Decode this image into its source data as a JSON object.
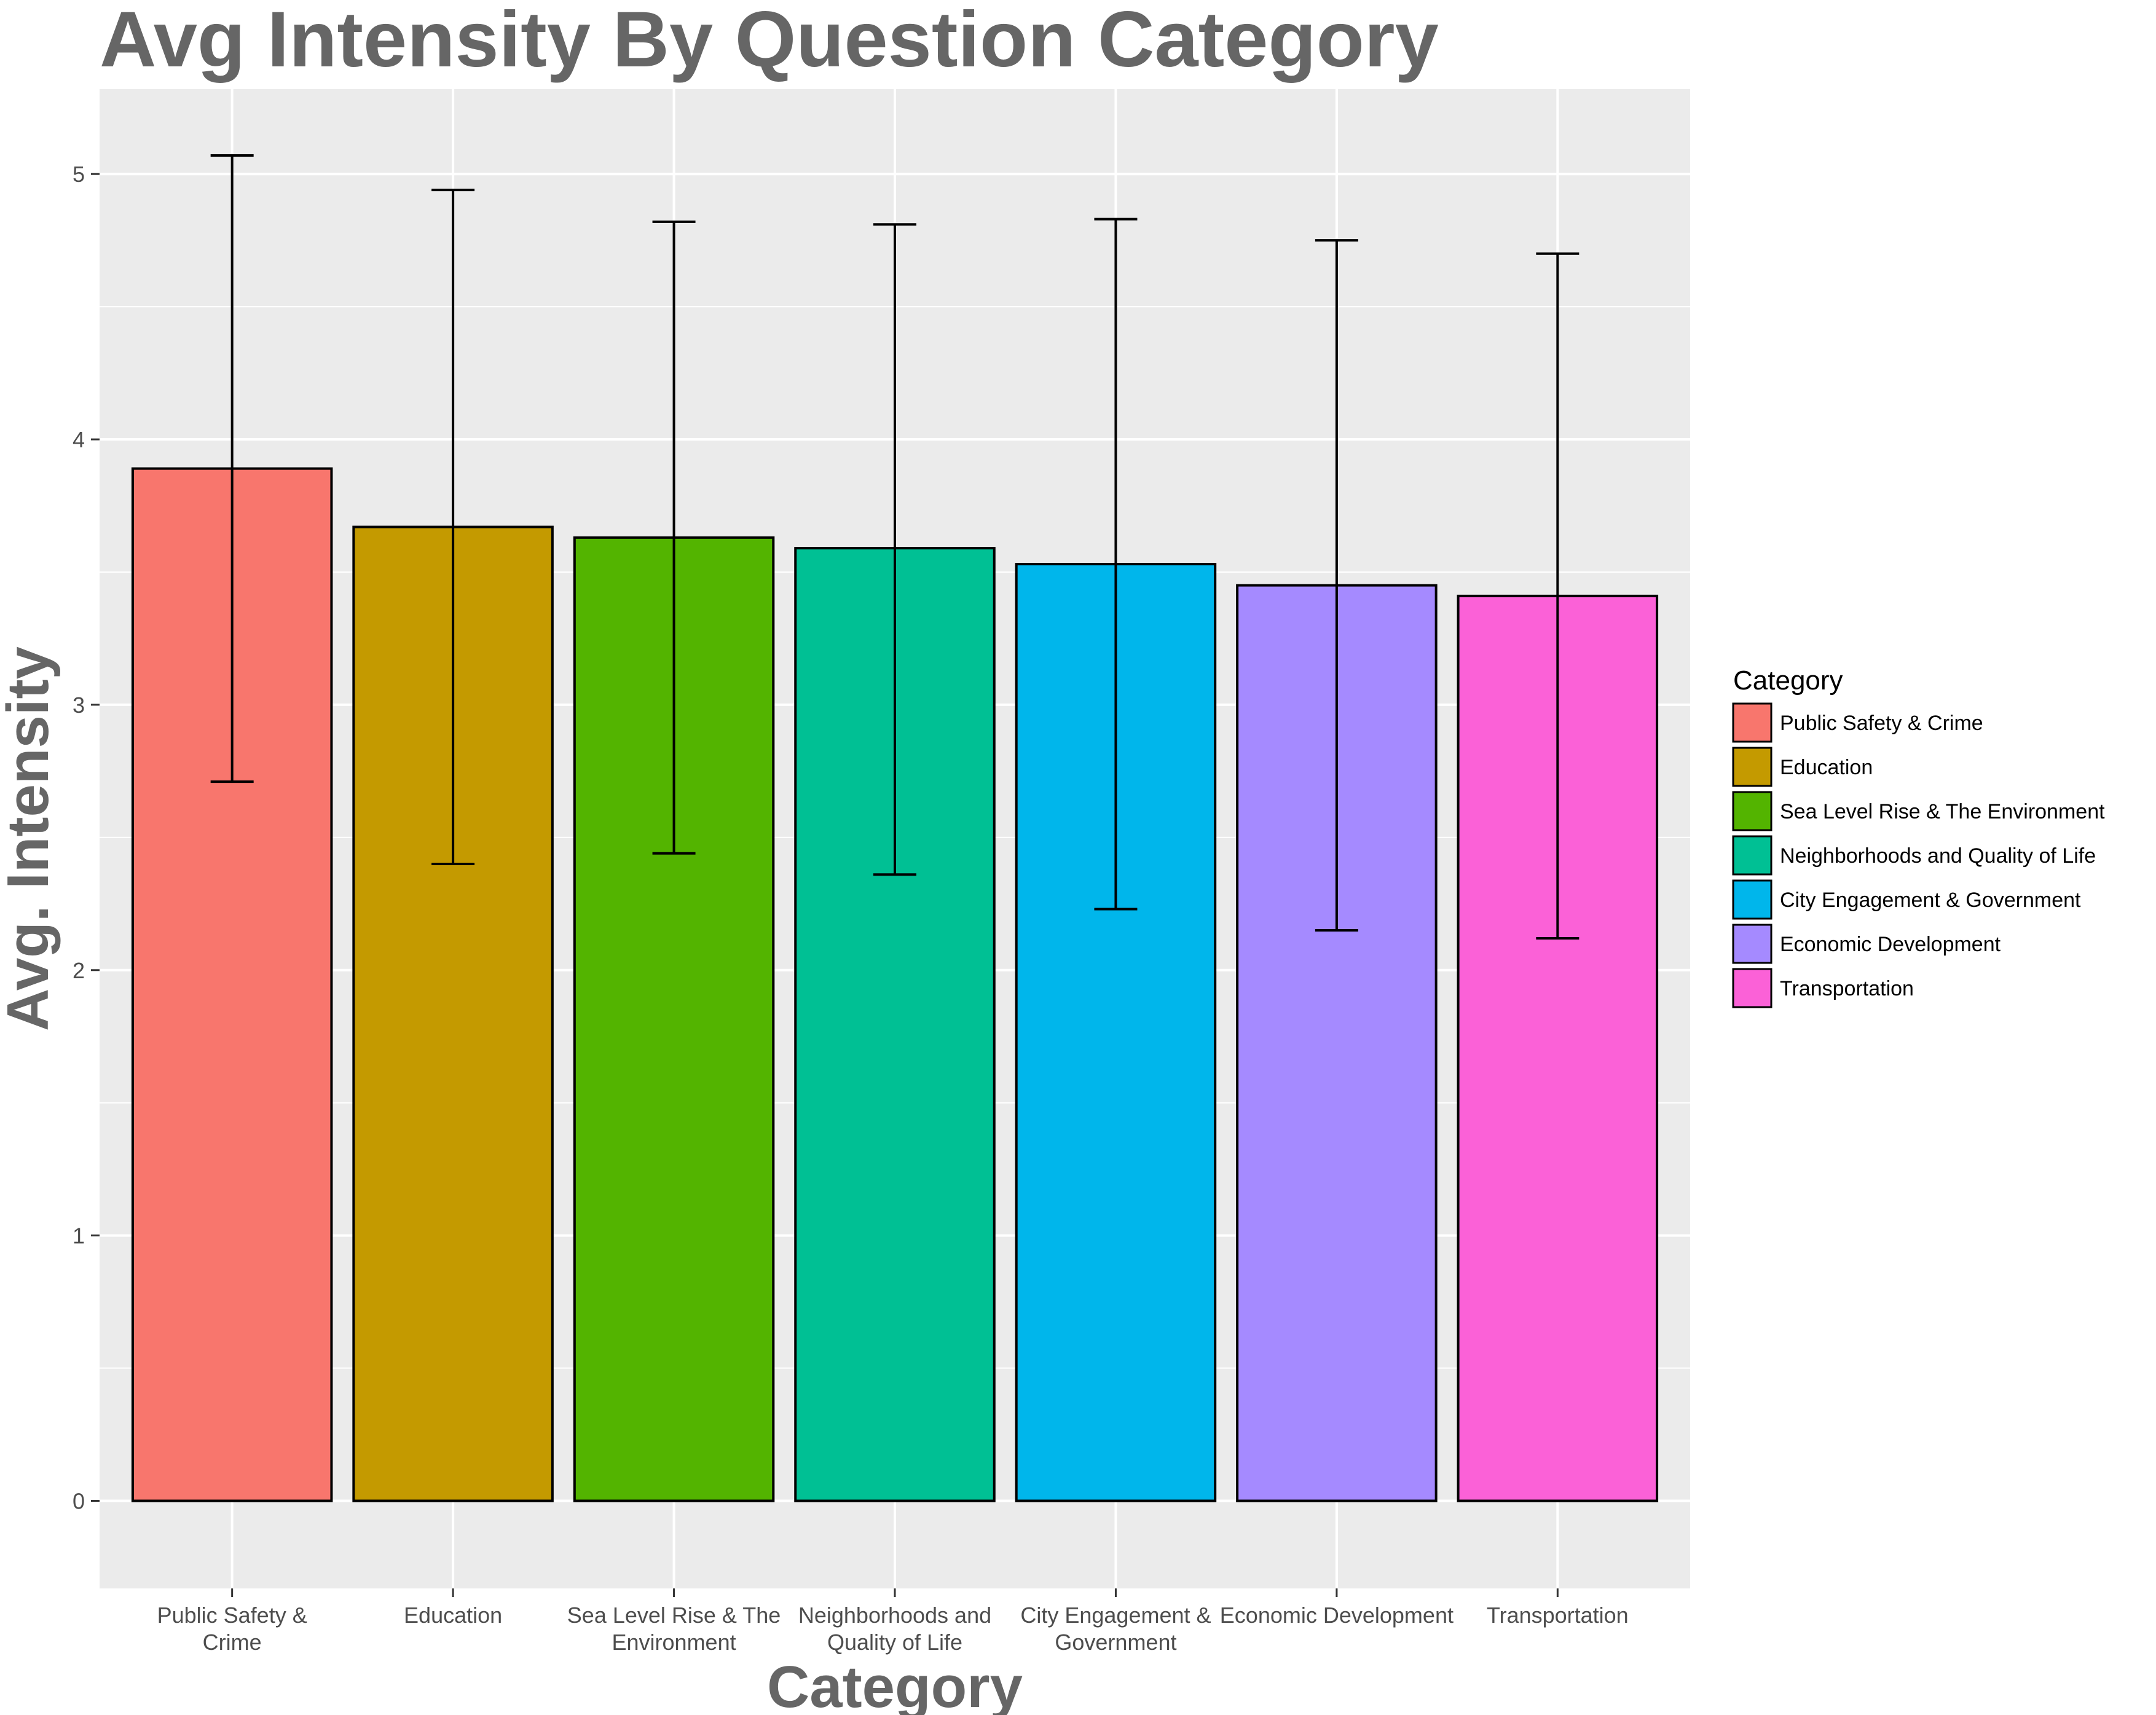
{
  "chart_data": {
    "type": "bar",
    "title": "Avg Intensity By Question Category",
    "xlabel": "Category",
    "ylabel": "Avg. Intensity",
    "ylim": [
      -0.33,
      5.32
    ],
    "yticks": [
      0,
      1,
      2,
      3,
      4,
      5
    ],
    "grid": true,
    "legend_position": "right",
    "legend_title": "Category",
    "categories": [
      "Public Safety & Crime",
      "Education",
      "Sea Level Rise & The Environment",
      "Neighborhoods and Quality of Life",
      "City Engagement & Government",
      "Economic Development",
      "Transportation"
    ],
    "tick_labels": [
      [
        "Public Safety &",
        "Crime"
      ],
      [
        "Education"
      ],
      [
        "Sea Level Rise & The",
        "Environment"
      ],
      [
        "Neighborhoods and",
        "Quality of Life"
      ],
      [
        "City Engagement &",
        "Government"
      ],
      [
        "Economic Development"
      ],
      [
        "Transportation"
      ]
    ],
    "values": [
      3.89,
      3.67,
      3.63,
      3.59,
      3.53,
      3.45,
      3.41
    ],
    "error_low": [
      2.71,
      2.4,
      2.44,
      2.36,
      2.23,
      2.15,
      2.12
    ],
    "error_high": [
      5.07,
      4.94,
      4.82,
      4.81,
      4.83,
      4.75,
      4.7
    ],
    "colors": [
      "#F8766D",
      "#C49A00",
      "#53B400",
      "#00C094",
      "#00B6EB",
      "#A58AFF",
      "#FB61D7"
    ]
  }
}
